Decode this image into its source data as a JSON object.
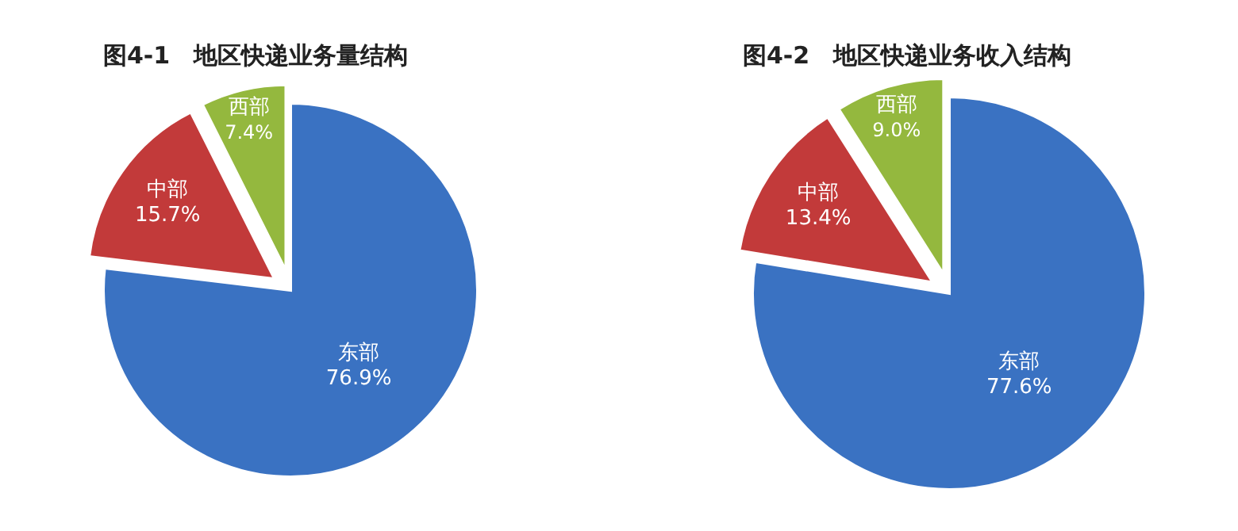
{
  "chart_data": [
    {
      "type": "pie",
      "title": "图4-1　地区快递业务量结构",
      "categories": [
        "东部",
        "中部",
        "西部"
      ],
      "values": [
        76.9,
        15.7,
        7.4
      ],
      "value_labels": [
        "76.9%",
        "15.7%",
        "7.4%"
      ],
      "colors": [
        "#3a72c2",
        "#c23a3a",
        "#94b83e"
      ],
      "legend": false
    },
    {
      "type": "pie",
      "title": "图4-2　地区快递业务收入结构",
      "categories": [
        "东部",
        "中部",
        "西部"
      ],
      "values": [
        77.6,
        13.4,
        9.0
      ],
      "value_labels": [
        "77.6%",
        "13.4%",
        "9.0%"
      ],
      "colors": [
        "#3a72c2",
        "#c23a3a",
        "#94b83e"
      ],
      "legend": false
    }
  ]
}
